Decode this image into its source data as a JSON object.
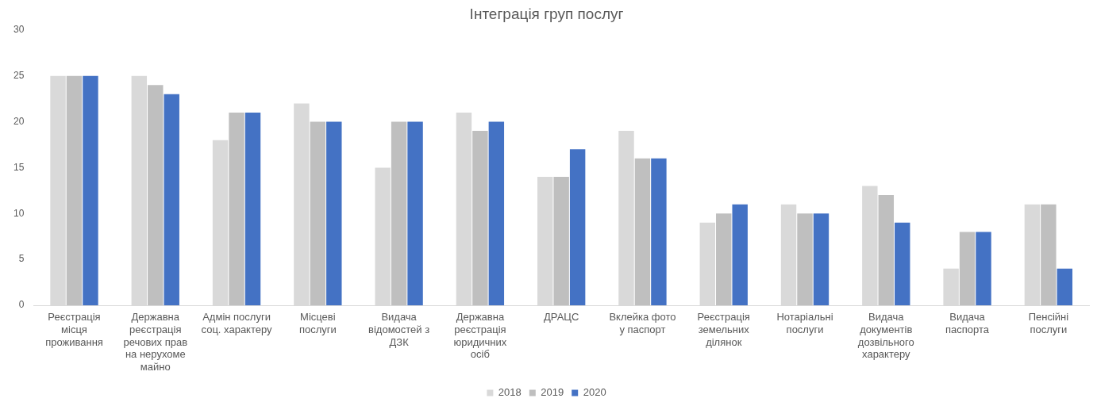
{
  "chart_data": {
    "type": "bar",
    "title": "Інтеграція груп послуг",
    "categories": [
      "Реєстрація місця проживання",
      "Державна реєстрація речових прав на нерухоме майно",
      "Адмін послуги соц. характеру",
      "Місцеві послуги",
      "Видача відомостей з ДЗК",
      "Державна реєстрація юридичних осіб",
      "ДРАЦС",
      "Вклейка фото у паспорт",
      "Реєстрація земельних ділянок",
      "Нотаріальні послуги",
      "Видача документів дозвільного характеру",
      "Видача паспорта",
      "Пенсійні послуги"
    ],
    "series": [
      {
        "name": "2018",
        "color": "#d9d9d9",
        "values": [
          25,
          25,
          18,
          22,
          15,
          21,
          14,
          19,
          9,
          11,
          13,
          4,
          11
        ]
      },
      {
        "name": "2019",
        "color": "#bfbfbf",
        "values": [
          25,
          24,
          21,
          20,
          20,
          19,
          14,
          16,
          10,
          10,
          12,
          8,
          11
        ]
      },
      {
        "name": "2020",
        "color": "#4472c4",
        "values": [
          25,
          23,
          21,
          20,
          20,
          20,
          17,
          16,
          11,
          10,
          9,
          8,
          4
        ]
      }
    ],
    "ylim": [
      0,
      30
    ],
    "yticks": [
      0,
      5,
      10,
      15,
      20,
      25,
      30
    ],
    "grid": false,
    "legend": "bottom"
  }
}
